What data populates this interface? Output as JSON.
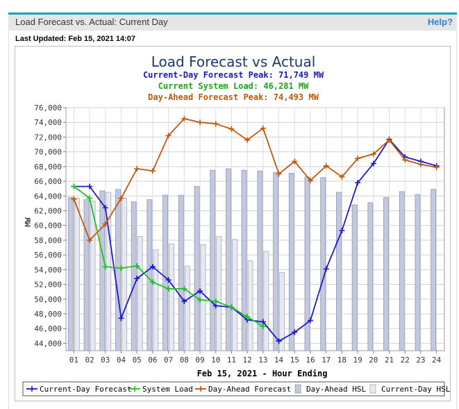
{
  "header": {
    "title": "Load Forecast vs. Actual: Current Day",
    "help_label": "Help?"
  },
  "last_updated": "Last Updated: Feb 15, 2021 14:07",
  "colors": {
    "current_day_forecast": "#1919d2",
    "system_load": "#1fc31f",
    "day_ahead_forecast": "#c4560a",
    "day_ahead_hsl": "#c3c8dc",
    "current_day_hsl": "#e8e8f0"
  },
  "chart_data": {
    "type": "bar",
    "title": "Load Forecast vs Actual",
    "subtitles": [
      {
        "text": "Current-Day Forecast Peak:  71,749 MW",
        "color": "#1919c8"
      },
      {
        "text": "Current System Load:  46,281 MW",
        "color": "#1fa51f"
      },
      {
        "text": "Day-Ahead Forecast Peak:  74,493 MW",
        "color": "#c4560a"
      }
    ],
    "xlabel": "Feb 15, 2021 - Hour Ending",
    "ylabel": "MW",
    "ylim": [
      43000,
      76000
    ],
    "yticks": [
      44000,
      46000,
      48000,
      50000,
      52000,
      54000,
      56000,
      58000,
      60000,
      62000,
      64000,
      66000,
      68000,
      70000,
      72000,
      74000,
      76000
    ],
    "ytick_labels": [
      "44,000",
      "46,000",
      "48,000",
      "50,000",
      "52,000",
      "54,000",
      "56,000",
      "58,000",
      "60,000",
      "62,000",
      "64,000",
      "66,000",
      "68,000",
      "70,000",
      "72,000",
      "74,000",
      "76,000"
    ],
    "grid": true,
    "legend_position": "bottom",
    "categories": [
      "01",
      "02",
      "03",
      "04",
      "05",
      "06",
      "07",
      "08",
      "09",
      "10",
      "11",
      "12",
      "13",
      "14",
      "15",
      "16",
      "17",
      "18",
      "19",
      "20",
      "21",
      "22",
      "23",
      "24"
    ],
    "bar_series": [
      {
        "name": "Day-Ahead HSL",
        "values": [
          63800,
          63500,
          64700,
          64900,
          63200,
          63500,
          64100,
          64100,
          65300,
          67500,
          67700,
          67500,
          67400,
          67200,
          67100,
          66600,
          66500,
          64500,
          62800,
          63100,
          63800,
          64600,
          64200,
          64900
        ]
      },
      {
        "name": "Current-Day HSL",
        "values": [
          63700,
          63300,
          64500,
          63700,
          58500,
          56700,
          57500,
          54500,
          57400,
          58500,
          58100,
          55200,
          56500,
          53600,
          null,
          null,
          null,
          null,
          null,
          null,
          null,
          null,
          null,
          null
        ]
      }
    ],
    "line_series": [
      {
        "name": "Current-Day Forecast",
        "values": [
          65300,
          65300,
          62400,
          47400,
          52800,
          54400,
          52600,
          49700,
          51100,
          49100,
          48900,
          47200,
          46900,
          44300,
          45500,
          47100,
          54100,
          59300,
          65800,
          68400,
          71700,
          69300,
          68700,
          68100
        ]
      },
      {
        "name": "System Load",
        "values": [
          65300,
          63700,
          54400,
          54200,
          54500,
          52300,
          51400,
          51400,
          49900,
          49700,
          48900,
          47600,
          46300,
          null,
          null,
          null,
          null,
          null,
          null,
          null,
          null,
          null,
          null,
          null
        ]
      },
      {
        "name": "Day-Ahead Forecast",
        "values": [
          63600,
          58000,
          60200,
          63700,
          67700,
          67400,
          72200,
          74500,
          74000,
          73800,
          73100,
          71600,
          73200,
          67000,
          68700,
          66100,
          68100,
          66600,
          69100,
          69700,
          71600,
          68900,
          68300,
          67900
        ]
      }
    ]
  }
}
